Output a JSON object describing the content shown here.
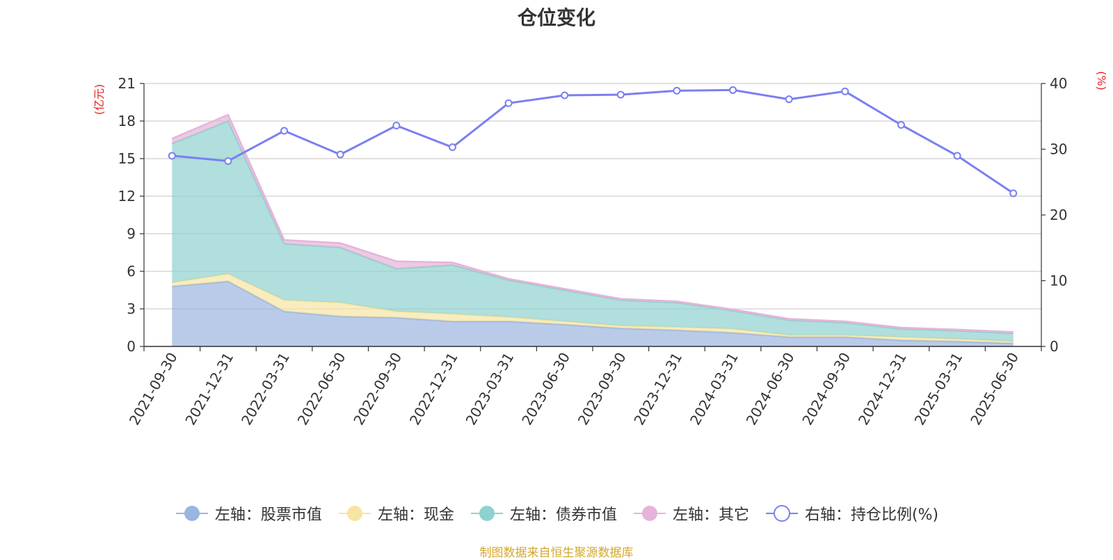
{
  "chart_data": {
    "type": "area",
    "title": "仓位变化",
    "left_unit": "(亿元)",
    "right_unit": "(%)",
    "categories": [
      "2021-09-30",
      "2021-12-31",
      "2022-03-31",
      "2022-06-30",
      "2022-09-30",
      "2022-12-31",
      "2023-03-31",
      "2023-06-30",
      "2023-09-30",
      "2023-12-31",
      "2024-03-31",
      "2024-06-30",
      "2024-09-30",
      "2024-12-31",
      "2025-03-31",
      "2025-06-30"
    ],
    "left_axis": {
      "min": 0,
      "max": 21,
      "ticks": [
        0,
        3,
        6,
        9,
        12,
        15,
        18,
        21
      ]
    },
    "right_axis": {
      "min": 0,
      "max": 40,
      "ticks": [
        0,
        10,
        20,
        30,
        40
      ]
    },
    "stacked": true,
    "series": [
      {
        "name": "左轴：股票市值",
        "axis": "left",
        "color": "#9bb5e0",
        "values": [
          4.8,
          5.2,
          2.8,
          2.4,
          2.3,
          2.0,
          2.0,
          1.75,
          1.45,
          1.3,
          1.1,
          0.75,
          0.75,
          0.5,
          0.4,
          0.25
        ]
      },
      {
        "name": "左轴：现金",
        "axis": "left",
        "color": "#f7e4a2",
        "values": [
          0.3,
          0.6,
          0.9,
          1.1,
          0.5,
          0.6,
          0.35,
          0.25,
          0.2,
          0.25,
          0.3,
          0.15,
          0.15,
          0.25,
          0.2,
          0.15
        ]
      },
      {
        "name": "左轴：债券市值",
        "axis": "left",
        "color": "#8fd1cf",
        "values": [
          11.1,
          12.2,
          4.5,
          4.4,
          3.4,
          3.9,
          2.95,
          2.5,
          2.05,
          1.95,
          1.45,
          1.2,
          1.0,
          0.65,
          0.65,
          0.65
        ]
      },
      {
        "name": "左轴：其它",
        "axis": "left",
        "color": "#e6b4d8",
        "values": [
          0.4,
          0.5,
          0.3,
          0.35,
          0.6,
          0.2,
          0.1,
          0.1,
          0.1,
          0.1,
          0.1,
          0.1,
          0.1,
          0.1,
          0.1,
          0.1
        ]
      },
      {
        "name": "右轴：持仓比例(%)",
        "axis": "right",
        "color": "#7b7ff0",
        "values": [
          29.0,
          28.2,
          32.8,
          29.2,
          33.6,
          30.3,
          37.0,
          38.2,
          38.3,
          38.9,
          39.0,
          37.6,
          38.8,
          33.7,
          29.0,
          23.3
        ]
      }
    ]
  },
  "footer": "制图数据来自恒生聚源数据库"
}
